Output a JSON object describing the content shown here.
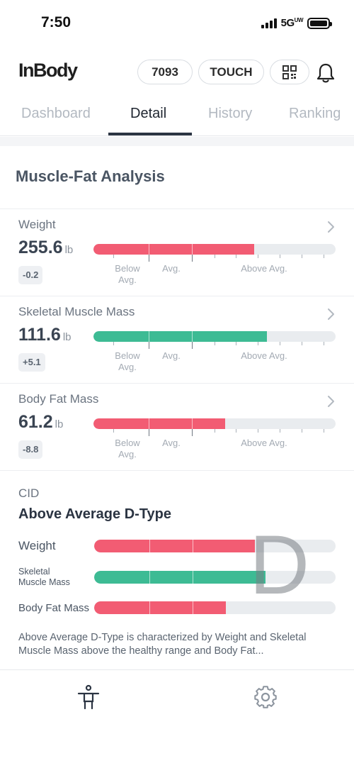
{
  "status": {
    "time": "7:50",
    "network": "5G",
    "network_suffix": "UW"
  },
  "header": {
    "logo": "InBody",
    "code_label": "7093",
    "touch_label": "TOUCH",
    "qr_icon": "qr-code-icon",
    "bell_icon": "bell-icon"
  },
  "tabs": [
    {
      "label": "Dashboard",
      "active": false
    },
    {
      "label": "Detail",
      "active": true
    },
    {
      "label": "History",
      "active": false
    },
    {
      "label": "Ranking",
      "active": false
    }
  ],
  "section_title": "Muscle-Fat Analysis",
  "scale_labels": {
    "below": "Below\nAvg.",
    "avg": "Avg.",
    "above": "Above Avg."
  },
  "metrics": [
    {
      "label": "Weight",
      "value": "255.6",
      "unit": "lb",
      "change": "-0.2",
      "fill": 0.665,
      "color": "#f25c73"
    },
    {
      "label": "Skeletal Muscle Mass",
      "value": "111.6",
      "unit": "lb",
      "change": "+5.1",
      "fill": 0.715,
      "color": "#3dbb94"
    },
    {
      "label": "Body Fat Mass",
      "value": "61.2",
      "unit": "lb",
      "change": "-8.8",
      "fill": 0.545,
      "color": "#f25c73"
    }
  ],
  "cid": {
    "label": "CID",
    "type": "Above Average D-Type",
    "letter": "D",
    "rows": [
      {
        "label": "Weight",
        "fill": 0.665,
        "color": "#f25c73"
      },
      {
        "label": "Skeletal\nMuscle Mass",
        "fill": 0.71,
        "color": "#3dbb94"
      },
      {
        "label": "Body Fat Mass",
        "fill": 0.545,
        "color": "#f25c73"
      }
    ],
    "description": "Above Average D-Type is characterized by Weight and Skeletal Muscle Mass above the healthy range and Body Fat..."
  },
  "bottom_nav": [
    {
      "icon": "body-icon",
      "active": true
    },
    {
      "icon": "gear-icon",
      "active": false
    }
  ]
}
